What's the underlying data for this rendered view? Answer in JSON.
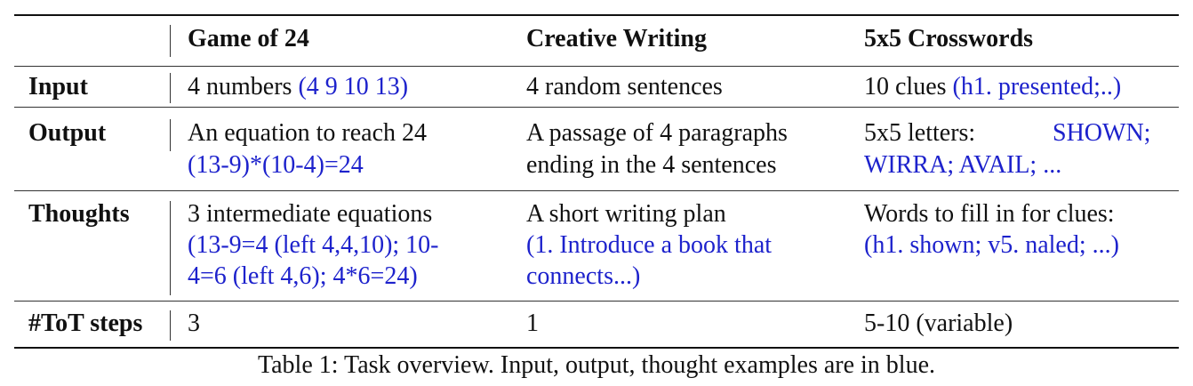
{
  "table": {
    "headers": [
      "",
      "Game of 24",
      "Creative Writing",
      "5x5 Crosswords"
    ],
    "rows": [
      {
        "label": "Input",
        "cells": [
          {
            "text": "4 numbers ",
            "blue": "(4 9 10 13)"
          },
          {
            "text": "4 random sentences",
            "blue": ""
          },
          {
            "text": "10 clues ",
            "blue": "(h1. presented;..)"
          }
        ]
      },
      {
        "label": "Output",
        "cells": [
          {
            "line1": "An equation to reach 24",
            "blue1": "(13-9)*(10-4)=24"
          },
          {
            "line1": "A passage of 4 paragraphs",
            "line2": "ending in the 4 sentences"
          },
          {
            "line1a": "5x5  letters:",
            "line1b": "SHOWN;",
            "blue2": "WIRRA; AVAIL; ..."
          }
        ]
      },
      {
        "label": "Thoughts",
        "cells": [
          {
            "line1": "3 intermediate equations",
            "blue1": "(13-9=4 (left 4,4,10); 10-",
            "blue2": "4=6 (left 4,6); 4*6=24)"
          },
          {
            "line1": "A  short  writing  plan",
            "blue1": "(1. Introduce  a  book  that",
            "blue2": "connects...)"
          },
          {
            "line1": "Words to fill in for clues:",
            "blue1": "(h1. shown; v5. naled; ...)"
          }
        ]
      },
      {
        "label": "#ToT steps",
        "cells": [
          {
            "text": "3"
          },
          {
            "text": "1"
          },
          {
            "text": "5-10 (variable)"
          }
        ]
      }
    ]
  },
  "caption": "Table 1: Task overview. Input, output, thought examples are in blue.",
  "colors": {
    "example_text": "#1d22cc",
    "text": "#111111"
  }
}
